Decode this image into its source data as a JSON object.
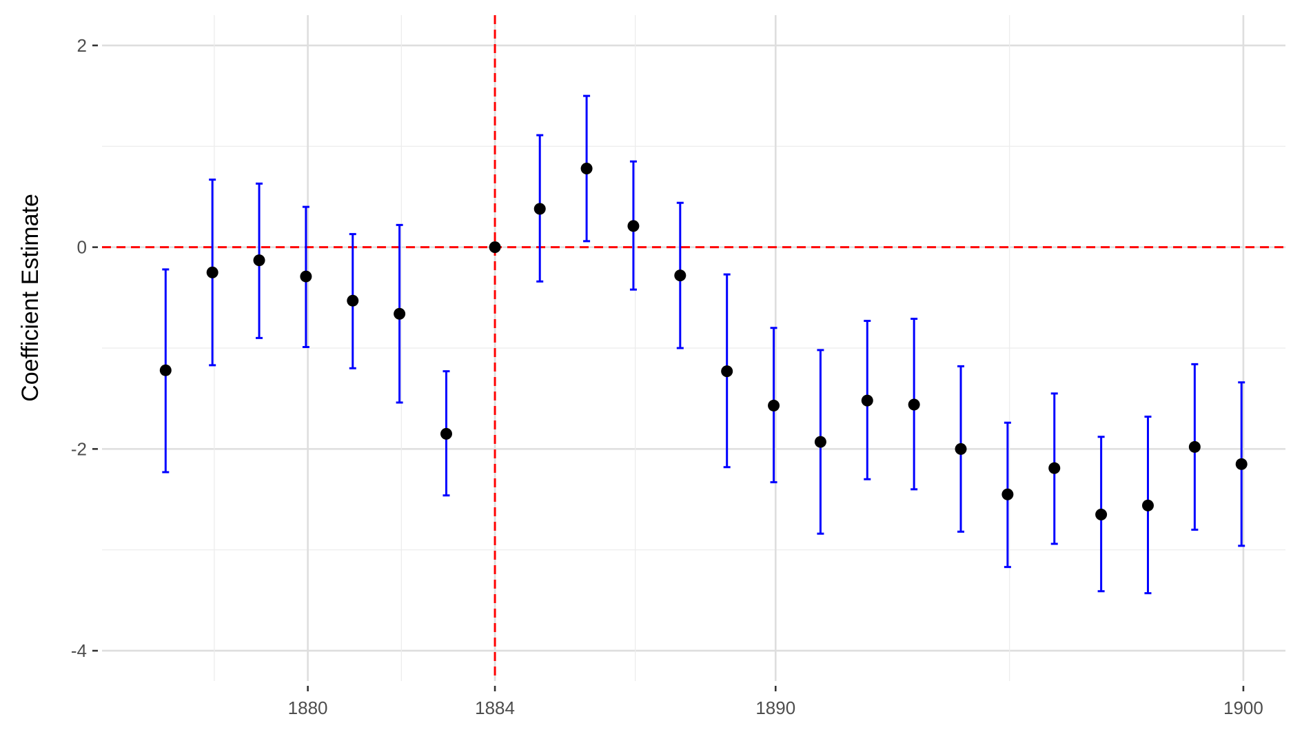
{
  "chart_data": {
    "type": "scatter",
    "title": "",
    "xlabel": "",
    "ylabel": "Coefficient Estimate",
    "xlim": [
      1875.6,
      1900.9
    ],
    "ylim": [
      -4.3,
      2.3
    ],
    "x_ticks": [
      1880,
      1884,
      1890,
      1900
    ],
    "x_tick_labels": [
      "1880",
      "1884",
      "1890",
      "1900"
    ],
    "y_ticks": [
      -4,
      -2,
      0,
      2
    ],
    "y_tick_labels": [
      "-4",
      "-2",
      "0",
      "2"
    ],
    "grid": true,
    "legend": "none",
    "reference_lines": {
      "horizontal_y": 0,
      "vertical_x": 1884
    },
    "colors": {
      "points": "#000000",
      "error_bars": "#0000ff",
      "reference_lines": "#ff0000"
    },
    "series": [
      {
        "x": [
          1876.96,
          1877.96,
          1878.96,
          1879.96,
          1880.96,
          1881.96,
          1882.96,
          1884,
          1884.96,
          1885.96,
          1886.96,
          1887.96,
          1888.96,
          1889.96,
          1890.96,
          1891.96,
          1892.96,
          1893.96,
          1894.96,
          1895.96,
          1896.96,
          1897.96,
          1898.96,
          1899.96
        ],
        "y": [
          -1.22,
          -0.25,
          -0.13,
          -0.29,
          -0.53,
          -0.66,
          -1.85,
          0.0,
          0.38,
          0.78,
          0.21,
          -0.28,
          -1.23,
          -1.57,
          -1.93,
          -1.52,
          -1.56,
          -2.0,
          -2.45,
          -2.19,
          -2.65,
          -2.56,
          -1.98,
          -2.15
        ],
        "lower": [
          -2.23,
          -1.17,
          -0.9,
          -0.99,
          -1.2,
          -1.54,
          -2.46,
          0.0,
          -0.34,
          0.06,
          -0.42,
          -1.0,
          -2.18,
          -2.33,
          -2.84,
          -2.3,
          -2.4,
          -2.82,
          -3.17,
          -2.94,
          -3.41,
          -3.43,
          -2.8,
          -2.96
        ],
        "upper": [
          -0.22,
          0.67,
          0.63,
          0.4,
          0.13,
          0.22,
          -1.23,
          0.0,
          1.11,
          1.5,
          0.85,
          0.44,
          -0.27,
          -0.8,
          -1.02,
          -0.73,
          -0.71,
          -1.18,
          -1.74,
          -1.45,
          -1.88,
          -1.68,
          -1.16,
          -1.34
        ]
      }
    ]
  }
}
